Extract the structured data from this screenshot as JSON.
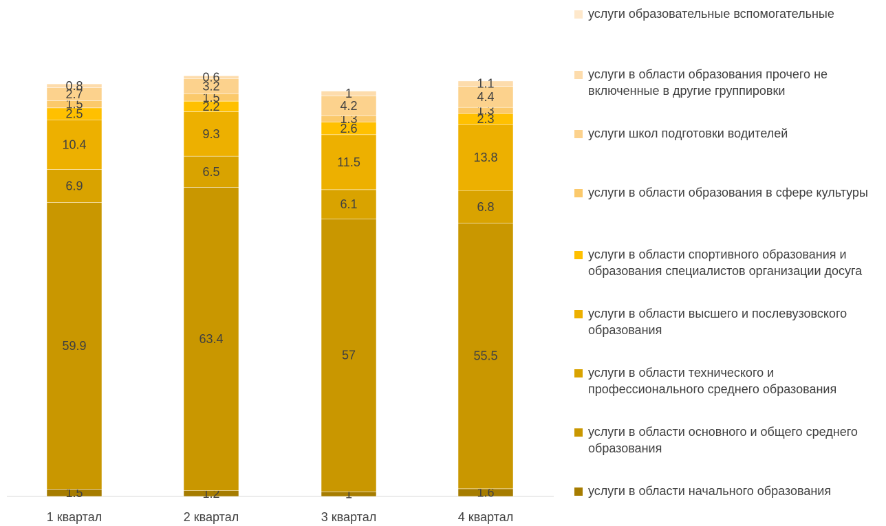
{
  "chart_data": {
    "type": "bar",
    "stacked": true,
    "categories": [
      "1 квартал",
      "2 квартал",
      "3 квартал",
      "4 квартал"
    ],
    "ylim": [
      0,
      100
    ],
    "grid": false,
    "legend_position": "right",
    "series": [
      {
        "name": "услуги в области начального образования",
        "color": "#A67C00",
        "values": [
          1.5,
          1.2,
          1,
          1.6
        ]
      },
      {
        "name": "услуги в области основного и общего среднего образования",
        "color": "#C99700",
        "values": [
          59.9,
          63.4,
          57,
          55.5
        ]
      },
      {
        "name": "услуги в области технического и профессионального среднего образования",
        "color": "#D9A300",
        "values": [
          6.9,
          6.5,
          6.1,
          6.8
        ]
      },
      {
        "name": "услуги в области высшего и послевузовского образования",
        "color": "#EDB000",
        "values": [
          10.4,
          9.3,
          11.5,
          13.8
        ]
      },
      {
        "name": "услуги в области спортивного образования и образования специалистов организации досуга",
        "color": "#FFC000",
        "values": [
          2.5,
          2.2,
          2.6,
          2.3
        ]
      },
      {
        "name": "услуги в области образования в сфере культуры",
        "color": "#FBC96B",
        "values": [
          1.5,
          1.5,
          1.3,
          1.3
        ]
      },
      {
        "name": "услуги школ подготовки водителей",
        "color": "#FCD28D",
        "values": [
          2.7,
          3.2,
          4.2,
          4.4
        ]
      },
      {
        "name": "услуги в области образования прочего не включенные в другие группировки",
        "color": "#FDDCAC",
        "values": [
          0.8,
          0.6,
          1,
          1.1
        ]
      },
      {
        "name": "услуги образовательные вспомогательные",
        "color": "#FEE8CB",
        "values": [
          0,
          0,
          0,
          0
        ]
      }
    ]
  },
  "legend": {
    "items": [
      "услуги образовательные вспомогательные",
      "услуги в области образования прочего не включенные в другие группировки",
      "услуги школ подготовки водителей",
      "услуги в области образования в сфере культуры",
      "услуги в области спортивного образования и образования специалистов организации досуга",
      "услуги в области высшего и послевузовского образования",
      "услуги в области технического и профессионального среднего образования",
      "услуги в области основного и общего среднего образования",
      "услуги в области начального образования"
    ],
    "colors": [
      "#FEE8CB",
      "#FDDCAC",
      "#FCD28D",
      "#FBC96B",
      "#FFC000",
      "#EDB000",
      "#D9A300",
      "#C99700",
      "#A67C00"
    ]
  }
}
